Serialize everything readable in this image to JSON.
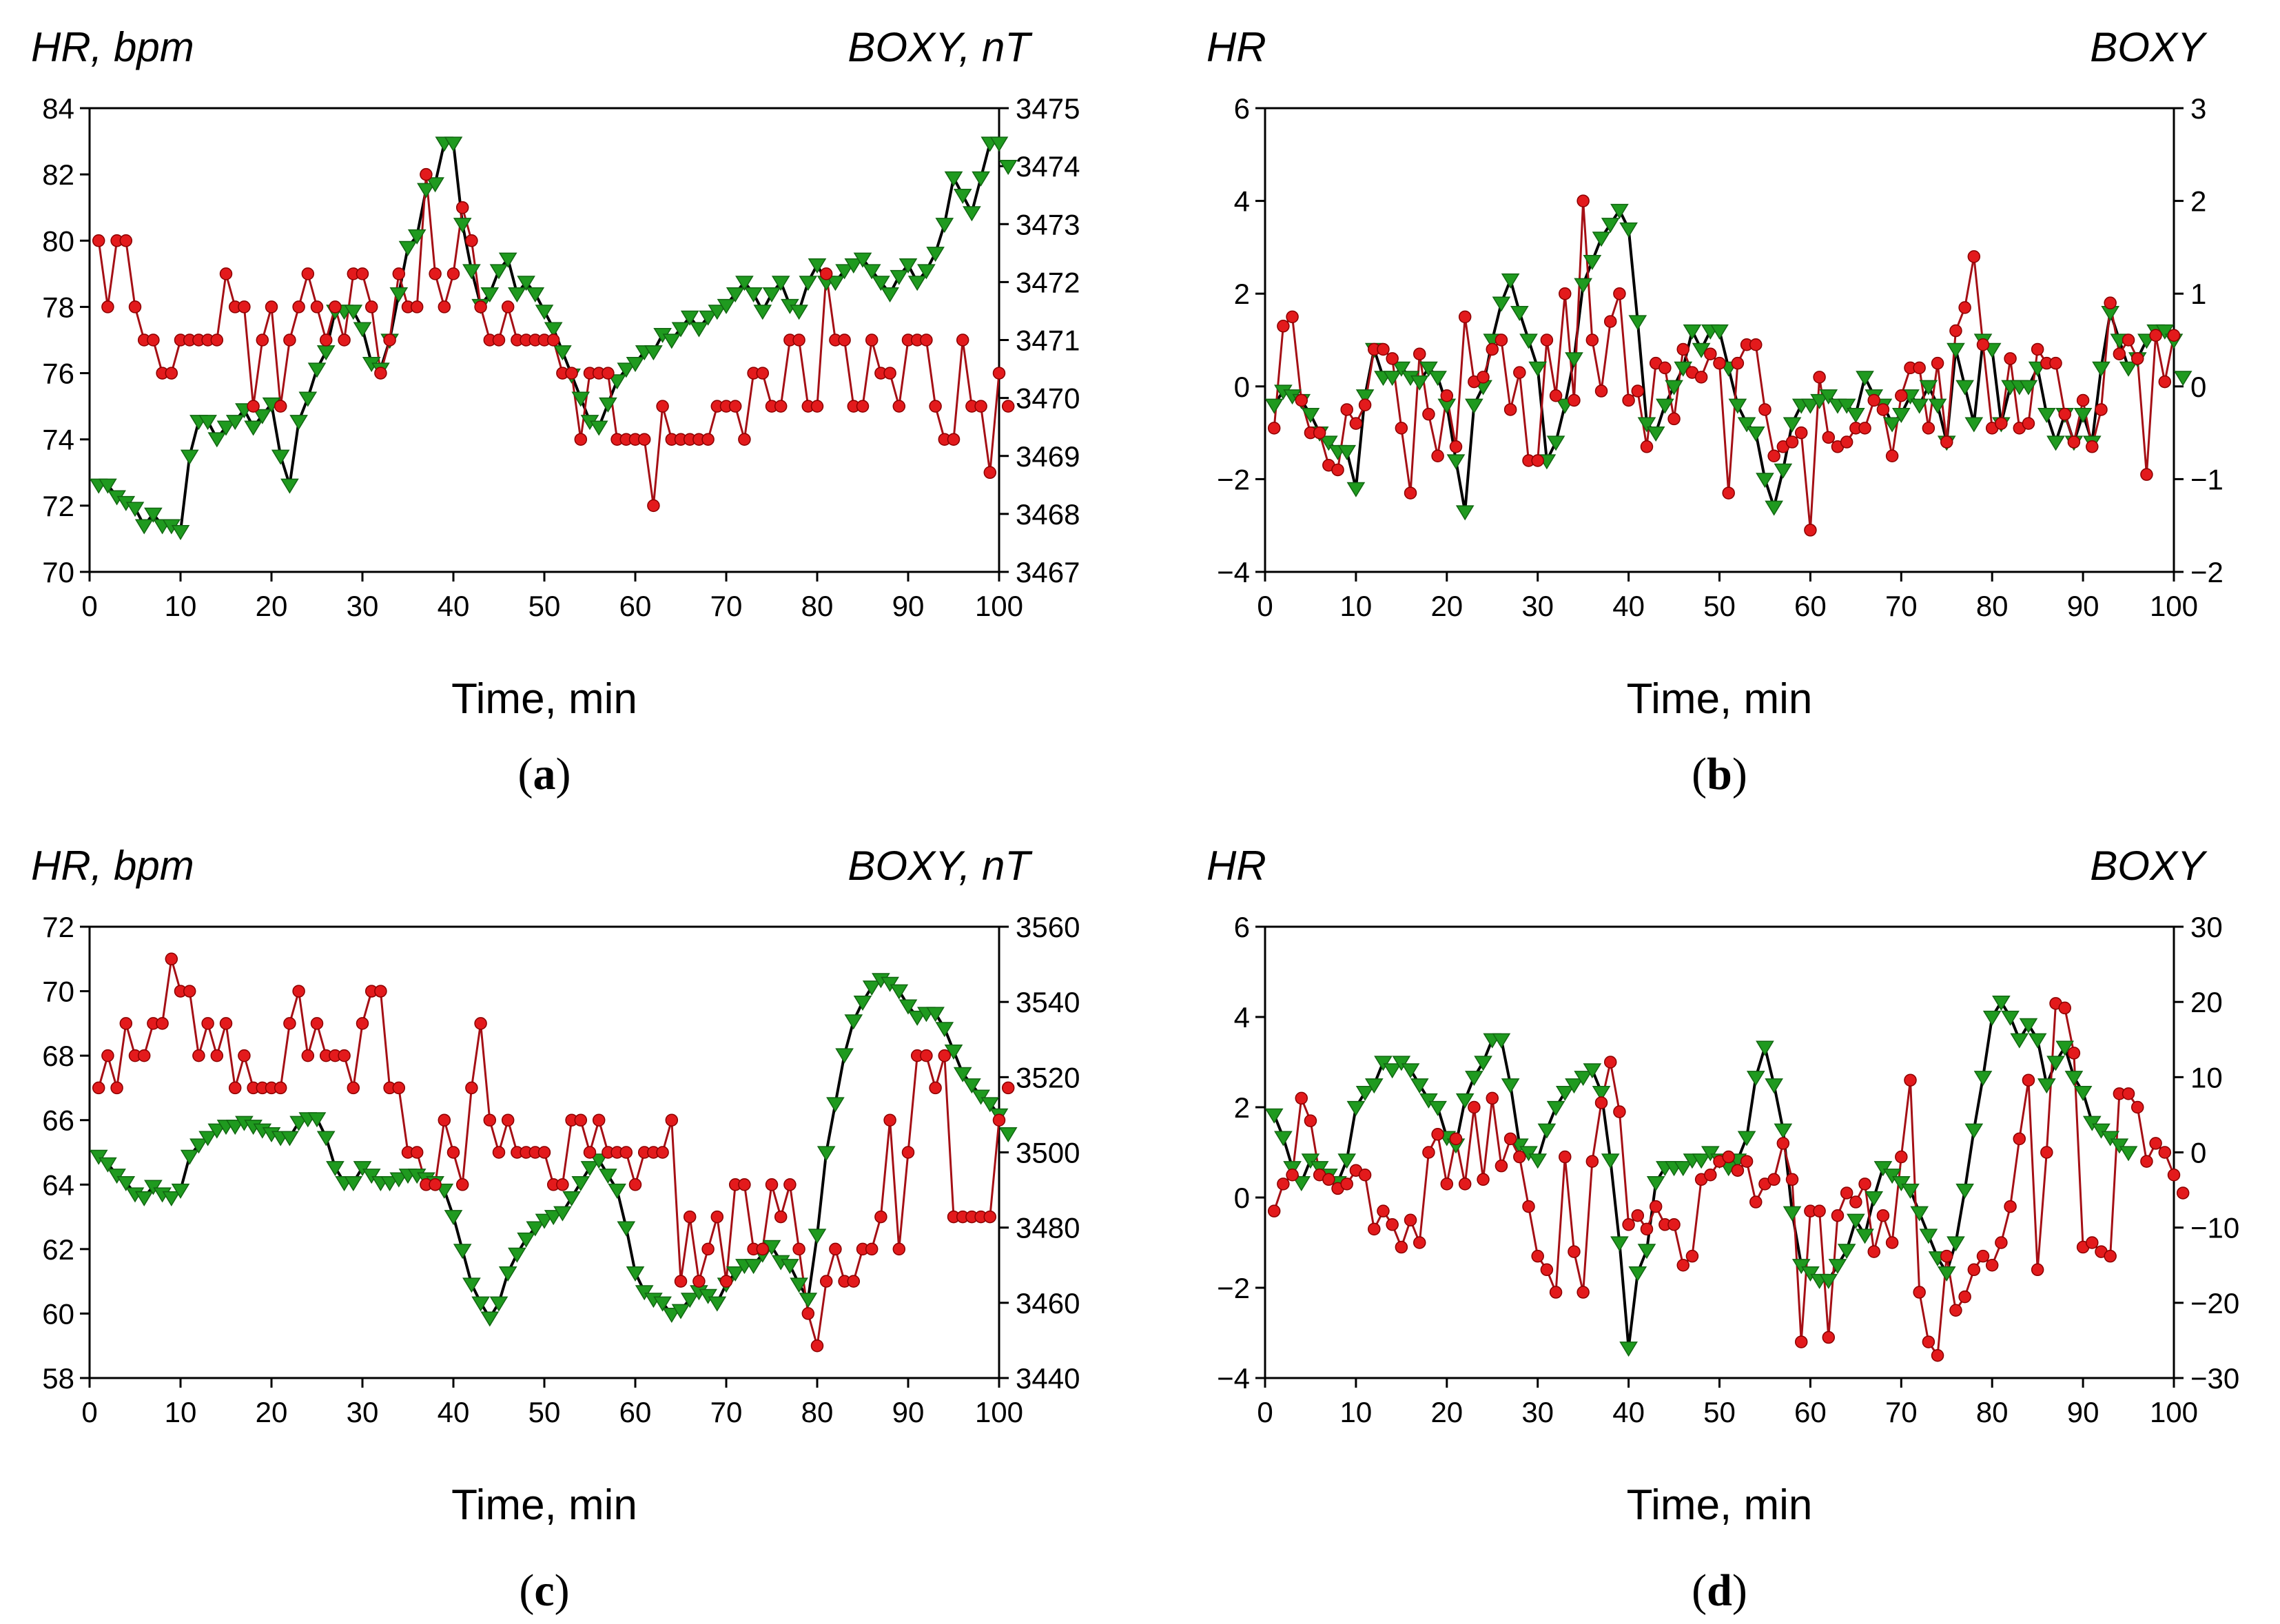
{
  "colors": {
    "hr": "#e31a1c",
    "hr_line": "#a50f15",
    "boxy_fill": "#1f9a1f",
    "boxy_line": "#000000"
  },
  "chart_data": [
    {
      "type": "line",
      "panel_label": "a",
      "left_title": "HR, bpm",
      "right_title": "BOXY, nT",
      "xlabel": "Time, min",
      "xlim": [
        0,
        100
      ],
      "xticks": [
        0,
        10,
        20,
        30,
        40,
        50,
        60,
        70,
        80,
        90,
        100
      ],
      "ylim_left": [
        70,
        84
      ],
      "yticks_left": [
        70,
        72,
        74,
        76,
        78,
        80,
        82,
        84
      ],
      "ylim_right": [
        3467,
        3475
      ],
      "yticks_right": [
        3467,
        3468,
        3469,
        3470,
        3471,
        3472,
        3473,
        3474,
        3475
      ],
      "hr_x_start": 1,
      "hr": [
        80,
        78,
        80,
        80,
        78,
        77,
        77,
        76,
        76,
        77,
        77,
        77,
        77,
        77,
        79,
        78,
        78,
        75,
        77,
        78,
        75,
        77,
        78,
        79,
        78,
        77,
        78,
        77,
        79,
        79,
        78,
        76,
        77,
        79,
        78,
        78,
        82,
        79,
        78,
        79,
        81,
        80,
        78,
        77,
        77,
        78,
        77,
        77,
        77,
        77,
        77,
        76,
        76,
        74,
        76,
        76,
        76,
        74,
        74,
        74,
        74,
        72,
        75,
        74,
        74,
        74,
        74,
        74,
        75,
        75,
        75,
        74,
        76,
        76,
        75,
        75,
        77,
        77,
        75,
        75,
        79,
        77,
        77,
        75,
        75,
        77,
        76,
        76,
        75,
        77,
        77,
        77,
        75,
        74,
        74,
        77,
        75,
        75,
        73,
        76,
        75
      ],
      "boxy_x_start": 1,
      "boxy": [
        3468.5,
        3468.5,
        3468.3,
        3468.2,
        3468.1,
        3467.8,
        3468.0,
        3467.8,
        3467.8,
        3467.7,
        3469.0,
        3469.6,
        3469.6,
        3469.3,
        3469.5,
        3469.6,
        3469.8,
        3469.5,
        3469.7,
        3469.9,
        3469.0,
        3468.5,
        3469.6,
        3470.0,
        3470.5,
        3470.8,
        3471.5,
        3471.5,
        3471.5,
        3471.2,
        3470.6,
        3470.5,
        3471.0,
        3471.8,
        3472.6,
        3472.8,
        3473.6,
        3473.7,
        3474.4,
        3474.4,
        3473.0,
        3472.2,
        3471.6,
        3471.8,
        3472.2,
        3472.4,
        3471.8,
        3472.0,
        3471.8,
        3471.5,
        3471.2,
        3470.8,
        3470.4,
        3470.0,
        3469.6,
        3469.5,
        3469.9,
        3470.3,
        3470.5,
        3470.6,
        3470.8,
        3470.8,
        3471.1,
        3471.0,
        3471.2,
        3471.4,
        3471.2,
        3471.4,
        3471.5,
        3471.6,
        3471.8,
        3472.0,
        3471.8,
        3471.5,
        3471.8,
        3472.0,
        3471.6,
        3471.5,
        3472.0,
        3472.3,
        3472.0,
        3472.0,
        3472.2,
        3472.3,
        3472.4,
        3472.2,
        3472.0,
        3471.8,
        3472.1,
        3472.3,
        3472.0,
        3472.2,
        3472.5,
        3473.0,
        3473.8,
        3473.5,
        3473.2,
        3473.8,
        3474.4,
        3474.4,
        3474.0
      ]
    },
    {
      "type": "line",
      "panel_label": "b",
      "left_title": "HR",
      "right_title": "BOXY",
      "xlabel": "Time, min",
      "xlim": [
        0,
        100
      ],
      "xticks": [
        0,
        10,
        20,
        30,
        40,
        50,
        60,
        70,
        80,
        90,
        100
      ],
      "ylim_left": [
        -4,
        6
      ],
      "yticks_left": [
        -4,
        -2,
        0,
        2,
        4,
        6
      ],
      "ylim_right": [
        -2,
        3
      ],
      "yticks_right": [
        -2,
        -1,
        0,
        1,
        2,
        3
      ],
      "hr_x_start": 1,
      "hr": [
        -0.9,
        1.3,
        1.5,
        -0.3,
        -1.0,
        -1.0,
        -1.7,
        -1.8,
        -0.5,
        -0.8,
        -0.4,
        0.8,
        0.8,
        0.6,
        -0.9,
        -2.3,
        0.7,
        -0.6,
        -1.5,
        -0.2,
        -1.3,
        1.5,
        0.1,
        0.2,
        0.8,
        1.0,
        -0.5,
        0.3,
        -1.6,
        -1.6,
        1.0,
        -0.2,
        2.0,
        -0.3,
        4.0,
        1.0,
        -0.1,
        1.4,
        2.0,
        -0.3,
        -0.1,
        -1.3,
        0.5,
        0.4,
        -0.7,
        0.8,
        0.3,
        0.2,
        0.7,
        0.5,
        -2.3,
        0.5,
        0.9,
        0.9,
        -0.5,
        -1.5,
        -1.3,
        -1.2,
        -1.0,
        -3.1,
        0.2,
        -1.1,
        -1.3,
        -1.2,
        -0.9,
        -0.9,
        -0.3,
        -0.5,
        -1.5,
        -0.2,
        0.4,
        0.4,
        -0.9,
        0.5,
        -1.2,
        1.2,
        1.7,
        2.8,
        0.9,
        -0.9,
        -0.8,
        0.6,
        -0.9,
        -0.8,
        0.8,
        0.5,
        0.5,
        -0.6,
        -1.2,
        -0.3,
        -1.3,
        -0.5,
        1.8,
        0.7,
        1.0,
        0.6,
        -1.9,
        1.1,
        0.1,
        1.1
      ],
      "boxy_x_start": 1,
      "boxy": [
        -0.2,
        -0.05,
        -0.1,
        -0.15,
        -0.3,
        -0.5,
        -0.6,
        -0.7,
        -0.7,
        -1.1,
        -0.1,
        0.4,
        0.1,
        0.1,
        0.2,
        0.1,
        0.05,
        0.2,
        0.1,
        -0.2,
        -0.8,
        -1.35,
        -0.2,
        0.0,
        0.5,
        0.9,
        1.15,
        0.8,
        0.5,
        0.2,
        -0.8,
        -0.6,
        -0.2,
        0.3,
        1.1,
        1.35,
        1.6,
        1.75,
        1.9,
        1.7,
        0.7,
        -0.4,
        -0.5,
        -0.2,
        0.0,
        0.2,
        0.6,
        0.4,
        0.6,
        0.6,
        0.2,
        -0.2,
        -0.4,
        -0.5,
        -1.0,
        -1.3,
        -0.9,
        -0.4,
        -0.2,
        -0.2,
        -0.15,
        -0.1,
        -0.2,
        -0.2,
        -0.3,
        0.1,
        -0.1,
        -0.2,
        -0.4,
        -0.3,
        -0.1,
        -0.2,
        0.0,
        -0.2,
        -0.6,
        0.4,
        0.0,
        -0.4,
        0.5,
        0.4,
        -0.4,
        0.0,
        0.0,
        0.0,
        0.2,
        -0.3,
        -0.6,
        -0.3,
        -0.6,
        -0.3,
        -0.6,
        0.2,
        0.8,
        0.5,
        0.2,
        0.3,
        0.5,
        0.6,
        0.6,
        0.5,
        0.1
      ]
    },
    {
      "type": "line",
      "panel_label": "c",
      "left_title": "HR, bpm",
      "right_title": "BOXY, nT",
      "xlabel": "Time, min",
      "xlim": [
        0,
        100
      ],
      "xticks": [
        0,
        10,
        20,
        30,
        40,
        50,
        60,
        70,
        80,
        90,
        100
      ],
      "ylim_left": [
        58,
        72
      ],
      "yticks_left": [
        58,
        60,
        62,
        64,
        66,
        68,
        70,
        72
      ],
      "ylim_right": [
        3440,
        3560
      ],
      "yticks_right": [
        3440,
        3460,
        3480,
        3500,
        3520,
        3540,
        3560
      ],
      "hr_x_start": 1,
      "hr": [
        67,
        68,
        67,
        69,
        68,
        68,
        69,
        69,
        71,
        70,
        70,
        68,
        69,
        68,
        69,
        67,
        68,
        67,
        67,
        67,
        67,
        69,
        70,
        68,
        69,
        68,
        68,
        68,
        67,
        69,
        70,
        70,
        67,
        67,
        65,
        65,
        64,
        64,
        66,
        65,
        64,
        67,
        69,
        66,
        65,
        66,
        65,
        65,
        65,
        65,
        64,
        64,
        66,
        66,
        65,
        66,
        65,
        65,
        65,
        64,
        65,
        65,
        65,
        66,
        61,
        63,
        61,
        62,
        63,
        61,
        64,
        64,
        62,
        62,
        64,
        63,
        64,
        62,
        60,
        59,
        61,
        62,
        61,
        61,
        62,
        62,
        63,
        66,
        62,
        65,
        68,
        68,
        67,
        68,
        63,
        63,
        63,
        63,
        63,
        66,
        67
      ],
      "boxy_x_start": 1,
      "boxy": [
        3499,
        3497,
        3494,
        3492,
        3489,
        3488,
        3491,
        3489,
        3488,
        3490,
        3499,
        3502,
        3504,
        3506,
        3507,
        3507,
        3508,
        3507,
        3506,
        3505,
        3504,
        3504,
        3508,
        3509,
        3509,
        3504,
        3496,
        3492,
        3492,
        3496,
        3494,
        3492,
        3492,
        3493,
        3494,
        3494,
        3493,
        3492,
        3490,
        3483,
        3474,
        3465,
        3460,
        3456,
        3460,
        3468,
        3473,
        3477,
        3480,
        3482,
        3483,
        3484,
        3488,
        3492,
        3496,
        3498,
        3494,
        3490,
        3480,
        3468,
        3463,
        3461,
        3460,
        3457,
        3458,
        3461,
        3463,
        3462,
        3460,
        3465,
        3468,
        3470,
        3470,
        3473,
        3475,
        3471,
        3470,
        3465,
        3461,
        3478,
        3500,
        3513,
        3526,
        3535,
        3540,
        3544,
        3546,
        3545,
        3543,
        3539,
        3536,
        3537,
        3537,
        3533,
        3527,
        3521,
        3518,
        3515,
        3513,
        3510,
        3505
      ]
    },
    {
      "type": "line",
      "panel_label": "d",
      "left_title": "HR",
      "right_title": "BOXY",
      "xlabel": "Time, min",
      "xlim": [
        0,
        100
      ],
      "xticks": [
        0,
        10,
        20,
        30,
        40,
        50,
        60,
        70,
        80,
        90,
        100
      ],
      "ylim_left": [
        -4,
        6
      ],
      "yticks_left": [
        -4,
        -2,
        0,
        2,
        4,
        6
      ],
      "ylim_right": [
        -30,
        30
      ],
      "yticks_right": [
        -30,
        -20,
        -10,
        0,
        10,
        20,
        30
      ],
      "hr_x_start": 1,
      "hr": [
        -0.3,
        0.3,
        0.5,
        2.2,
        1.7,
        0.5,
        0.4,
        0.2,
        0.3,
        0.6,
        0.5,
        -0.7,
        -0.3,
        -0.6,
        -1.1,
        -0.5,
        -1.0,
        1.0,
        1.4,
        0.3,
        1.3,
        0.3,
        2.0,
        0.4,
        2.2,
        0.7,
        1.3,
        0.9,
        -0.2,
        -1.3,
        -1.6,
        -2.1,
        0.9,
        -1.2,
        -2.1,
        0.8,
        2.1,
        3.0,
        1.9,
        -0.6,
        -0.4,
        -0.7,
        -0.2,
        -0.6,
        -0.6,
        -1.5,
        -1.3,
        0.4,
        0.5,
        0.8,
        0.9,
        0.6,
        0.8,
        -0.1,
        0.3,
        0.4,
        1.2,
        0.4,
        -3.2,
        -0.3,
        -0.3,
        -3.1,
        -0.4,
        0.1,
        -0.1,
        0.3,
        -1.2,
        -0.4,
        -1.0,
        0.9,
        2.6,
        -2.1,
        -3.2,
        -3.5,
        -1.3,
        -2.5,
        -2.2,
        -1.6,
        -1.3,
        -1.5,
        -1.0,
        -0.2,
        1.3,
        2.6,
        -1.6,
        1.0,
        4.3,
        4.2,
        3.2,
        -1.1,
        -1.0,
        -1.2,
        -1.3,
        2.3,
        2.3,
        2.0,
        0.8,
        1.2,
        1.0,
        0.5,
        0.1
      ],
      "boxy_x_start": 1,
      "boxy": [
        5,
        2,
        -2,
        -4,
        -1,
        -2,
        -3,
        -4,
        -1,
        6,
        8,
        9,
        12,
        11,
        12,
        11,
        9,
        7,
        6,
        2,
        1,
        7,
        10,
        12,
        15,
        15,
        9,
        1,
        0,
        -1,
        3,
        6,
        8,
        9,
        10,
        11,
        8,
        -1,
        -12,
        -26,
        -16,
        -13,
        -4,
        -2,
        -2,
        -2,
        -1,
        -1,
        0,
        -1,
        -2,
        -1,
        2,
        10,
        14,
        9,
        3,
        -8,
        -15,
        -16,
        -17,
        -17,
        -15,
        -13,
        -9,
        -11,
        -6,
        -2,
        -3,
        -4,
        -5,
        -8,
        -11,
        -14,
        -16,
        -12,
        -5,
        3,
        10,
        18,
        20,
        18,
        15,
        17,
        15,
        9,
        12,
        14,
        10,
        8,
        4,
        3,
        2,
        1,
        0
      ]
    }
  ]
}
